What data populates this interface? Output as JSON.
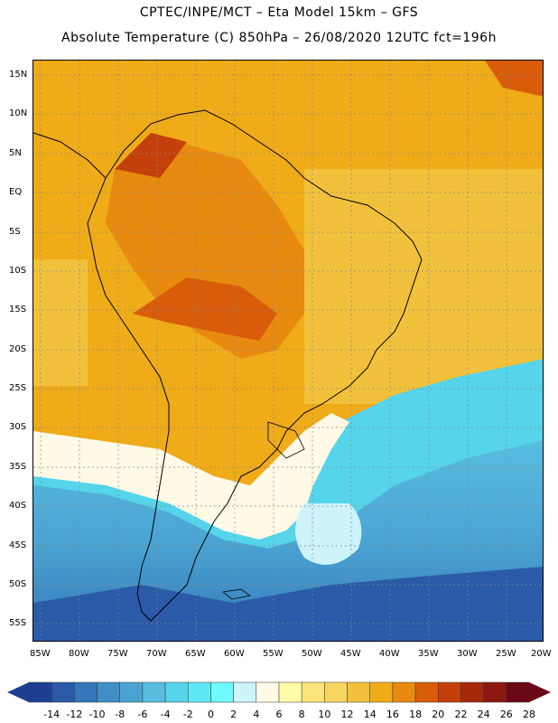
{
  "header": {
    "line1": "CPTEC/INPE/MCT –  Eta Model 15km – GFS",
    "line2": "Absolute Temperature (C) 850hPa – 26/08/2020 12UTC fct=196h"
  },
  "lat_labels": [
    "15N",
    "10N",
    "5N",
    "EQ",
    "5S",
    "10S",
    "15S",
    "20S",
    "25S",
    "30S",
    "35S",
    "40S",
    "45S",
    "50S",
    "55S"
  ],
  "lon_labels": [
    "85W",
    "80W",
    "75W",
    "70W",
    "65W",
    "60W",
    "55W",
    "50W",
    "45W",
    "40W",
    "35W",
    "30W",
    "25W",
    "20W"
  ],
  "colorbar": {
    "labels": [
      "-14",
      "-12",
      "-10",
      "-8",
      "-6",
      "-4",
      "-2",
      "0",
      "2",
      "4",
      "6",
      "8",
      "10",
      "12",
      "14",
      "16",
      "18",
      "20",
      "22",
      "24",
      "26",
      "28"
    ],
    "colors": [
      "#1e3f94",
      "#2a5aa8",
      "#3577b8",
      "#3f8fc6",
      "#4aa4d2",
      "#58bde0",
      "#55d4ea",
      "#5fe8f4",
      "#6ffafc",
      "#cdf4fb",
      "#fff9e6",
      "#fffaa8",
      "#fbe57a",
      "#f7d65f",
      "#f2c13b",
      "#efab18",
      "#e88a10",
      "#d85c0a",
      "#c4400a",
      "#a52a0c",
      "#8a1a10",
      "#6a0818"
    ]
  }
}
